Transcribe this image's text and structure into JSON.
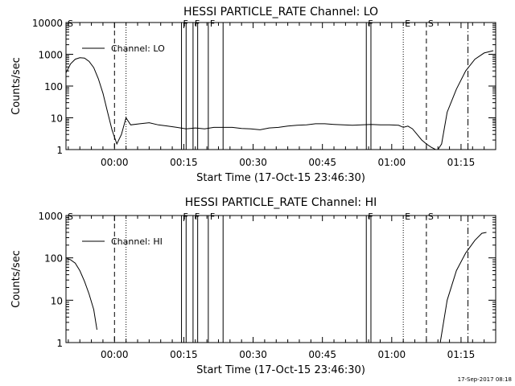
{
  "footer": {
    "timestamp": "17-Sep-2017 08:18"
  },
  "chart_data": [
    {
      "type": "line",
      "title": "HESSI PARTICLE_RATE Channel: LO",
      "xlabel": "Start Time (17-Oct-15 23:46:30)",
      "ylabel": "Counts/sec",
      "y_scale": "log",
      "ylim": [
        1,
        10000
      ],
      "xlim": [
        -10.5,
        82.5
      ],
      "x_ticks": [
        0,
        15,
        30,
        45,
        60,
        75
      ],
      "x_tick_labels": [
        "00:00",
        "00:15",
        "00:30",
        "00:45",
        "01:00",
        "01:15"
      ],
      "y_ticks": [
        1,
        10,
        100,
        1000,
        10000
      ],
      "y_tick_labels": [
        "1",
        "10",
        "100",
        "1000",
        "10000"
      ],
      "legend": {
        "entry": "Channel: LO",
        "placement": "top-left"
      },
      "series": [
        {
          "name": "Channel: LO",
          "x": [
            -10.5,
            -9.5,
            -8.5,
            -7.5,
            -6.5,
            -5.5,
            -4.5,
            -3.5,
            -2.5,
            -1.5,
            -0.5,
            0.5,
            1.5,
            2.5,
            3.5,
            5.5,
            7.5,
            9.5,
            11.5,
            13.5,
            15.5,
            17.5,
            19.5,
            21.5,
            23.5,
            25.5,
            27.5,
            29.5,
            31.5,
            33.5,
            35.5,
            37.5,
            39.5,
            41.5,
            43.5,
            45.5,
            47.5,
            49.5,
            51.5,
            53.5,
            55.5,
            57.5,
            59.5,
            61.5,
            62.5,
            63.5,
            64.5,
            65.5,
            66.5,
            67.5,
            68.5,
            69.5,
            70,
            70.8,
            72,
            74,
            76,
            78,
            80,
            82
          ],
          "y": [
            260,
            500,
            700,
            780,
            760,
            600,
            380,
            170,
            60,
            15,
            4,
            1.5,
            3,
            10,
            6,
            6.5,
            7,
            6,
            5.5,
            5,
            4.5,
            4.8,
            4.5,
            5,
            5,
            5,
            4.6,
            4.5,
            4.2,
            4.8,
            5,
            5.5,
            5.8,
            6,
            6.5,
            6.5,
            6.2,
            6,
            5.8,
            6,
            6.2,
            6,
            6,
            5.8,
            5,
            5.5,
            4.5,
            3,
            2,
            1.5,
            1.2,
            1,
            1,
            1.5,
            15,
            80,
            300,
            700,
            1100,
            1300
          ]
        }
      ],
      "vertical_markers": [
        {
          "label": "S",
          "x": -10.5,
          "style": "solid"
        },
        {
          "label": "",
          "x": 0,
          "style": "dashed"
        },
        {
          "label": "",
          "x": 2.5,
          "style": "dotted"
        },
        {
          "label": "F",
          "x": 14.5,
          "style": "solid"
        },
        {
          "label": "",
          "x": 15.5,
          "style": "solid"
        },
        {
          "label": "F",
          "x": 17,
          "style": "solid"
        },
        {
          "label": "",
          "x": 18,
          "style": "solid"
        },
        {
          "label": "F",
          "x": 20.3,
          "style": "solid"
        },
        {
          "label": "",
          "x": 23.5,
          "style": "solid"
        },
        {
          "label": "F",
          "x": 54.5,
          "style": "solid"
        },
        {
          "label": "",
          "x": 55.5,
          "style": "solid"
        },
        {
          "label": "E",
          "x": 62.5,
          "style": "dotted"
        },
        {
          "label": "S",
          "x": 67.5,
          "style": "dashed"
        },
        {
          "label": "",
          "x": 76.5,
          "style": "dash-dot"
        }
      ]
    },
    {
      "type": "line",
      "title": "HESSI PARTICLE_RATE Channel: HI",
      "xlabel": "Start Time (17-Oct-15 23:46:30)",
      "ylabel": "Counts/sec",
      "y_scale": "log",
      "ylim": [
        1,
        1000
      ],
      "xlim": [
        -10.5,
        82.5
      ],
      "x_ticks": [
        0,
        15,
        30,
        45,
        60,
        75
      ],
      "x_tick_labels": [
        "00:00",
        "00:15",
        "00:30",
        "00:45",
        "01:00",
        "01:15"
      ],
      "y_ticks": [
        1,
        10,
        100,
        1000
      ],
      "y_tick_labels": [
        "1",
        "10",
        "100",
        "1000"
      ],
      "legend": {
        "entry": "Channel: HI",
        "placement": "top-left"
      },
      "series": [
        {
          "name": "Channel: HI",
          "x": [
            -10.5,
            -9.5,
            -8.5,
            -7.5,
            -6.5,
            -5.5,
            -4.5,
            -3.8
          ],
          "y": [
            100,
            90,
            75,
            50,
            28,
            14,
            6,
            2
          ]
        },
        {
          "name": "Channel: HI",
          "x": [
            70.5,
            72,
            74,
            76,
            78,
            79.5,
            80.5
          ],
          "y": [
            1,
            10,
            50,
            130,
            260,
            380,
            400
          ]
        }
      ],
      "vertical_markers": [
        {
          "label": "S",
          "x": -10.5,
          "style": "solid"
        },
        {
          "label": "",
          "x": 0,
          "style": "dashed"
        },
        {
          "label": "",
          "x": 2.5,
          "style": "dotted"
        },
        {
          "label": "F",
          "x": 14.5,
          "style": "solid"
        },
        {
          "label": "",
          "x": 15.5,
          "style": "solid"
        },
        {
          "label": "F",
          "x": 17,
          "style": "solid"
        },
        {
          "label": "",
          "x": 18,
          "style": "solid"
        },
        {
          "label": "F",
          "x": 20.3,
          "style": "solid"
        },
        {
          "label": "",
          "x": 23.5,
          "style": "solid"
        },
        {
          "label": "F",
          "x": 54.5,
          "style": "solid"
        },
        {
          "label": "",
          "x": 55.5,
          "style": "solid"
        },
        {
          "label": "E",
          "x": 62.5,
          "style": "dotted"
        },
        {
          "label": "S",
          "x": 67.5,
          "style": "dashed"
        },
        {
          "label": "",
          "x": 76.5,
          "style": "dash-dot"
        }
      ]
    }
  ]
}
